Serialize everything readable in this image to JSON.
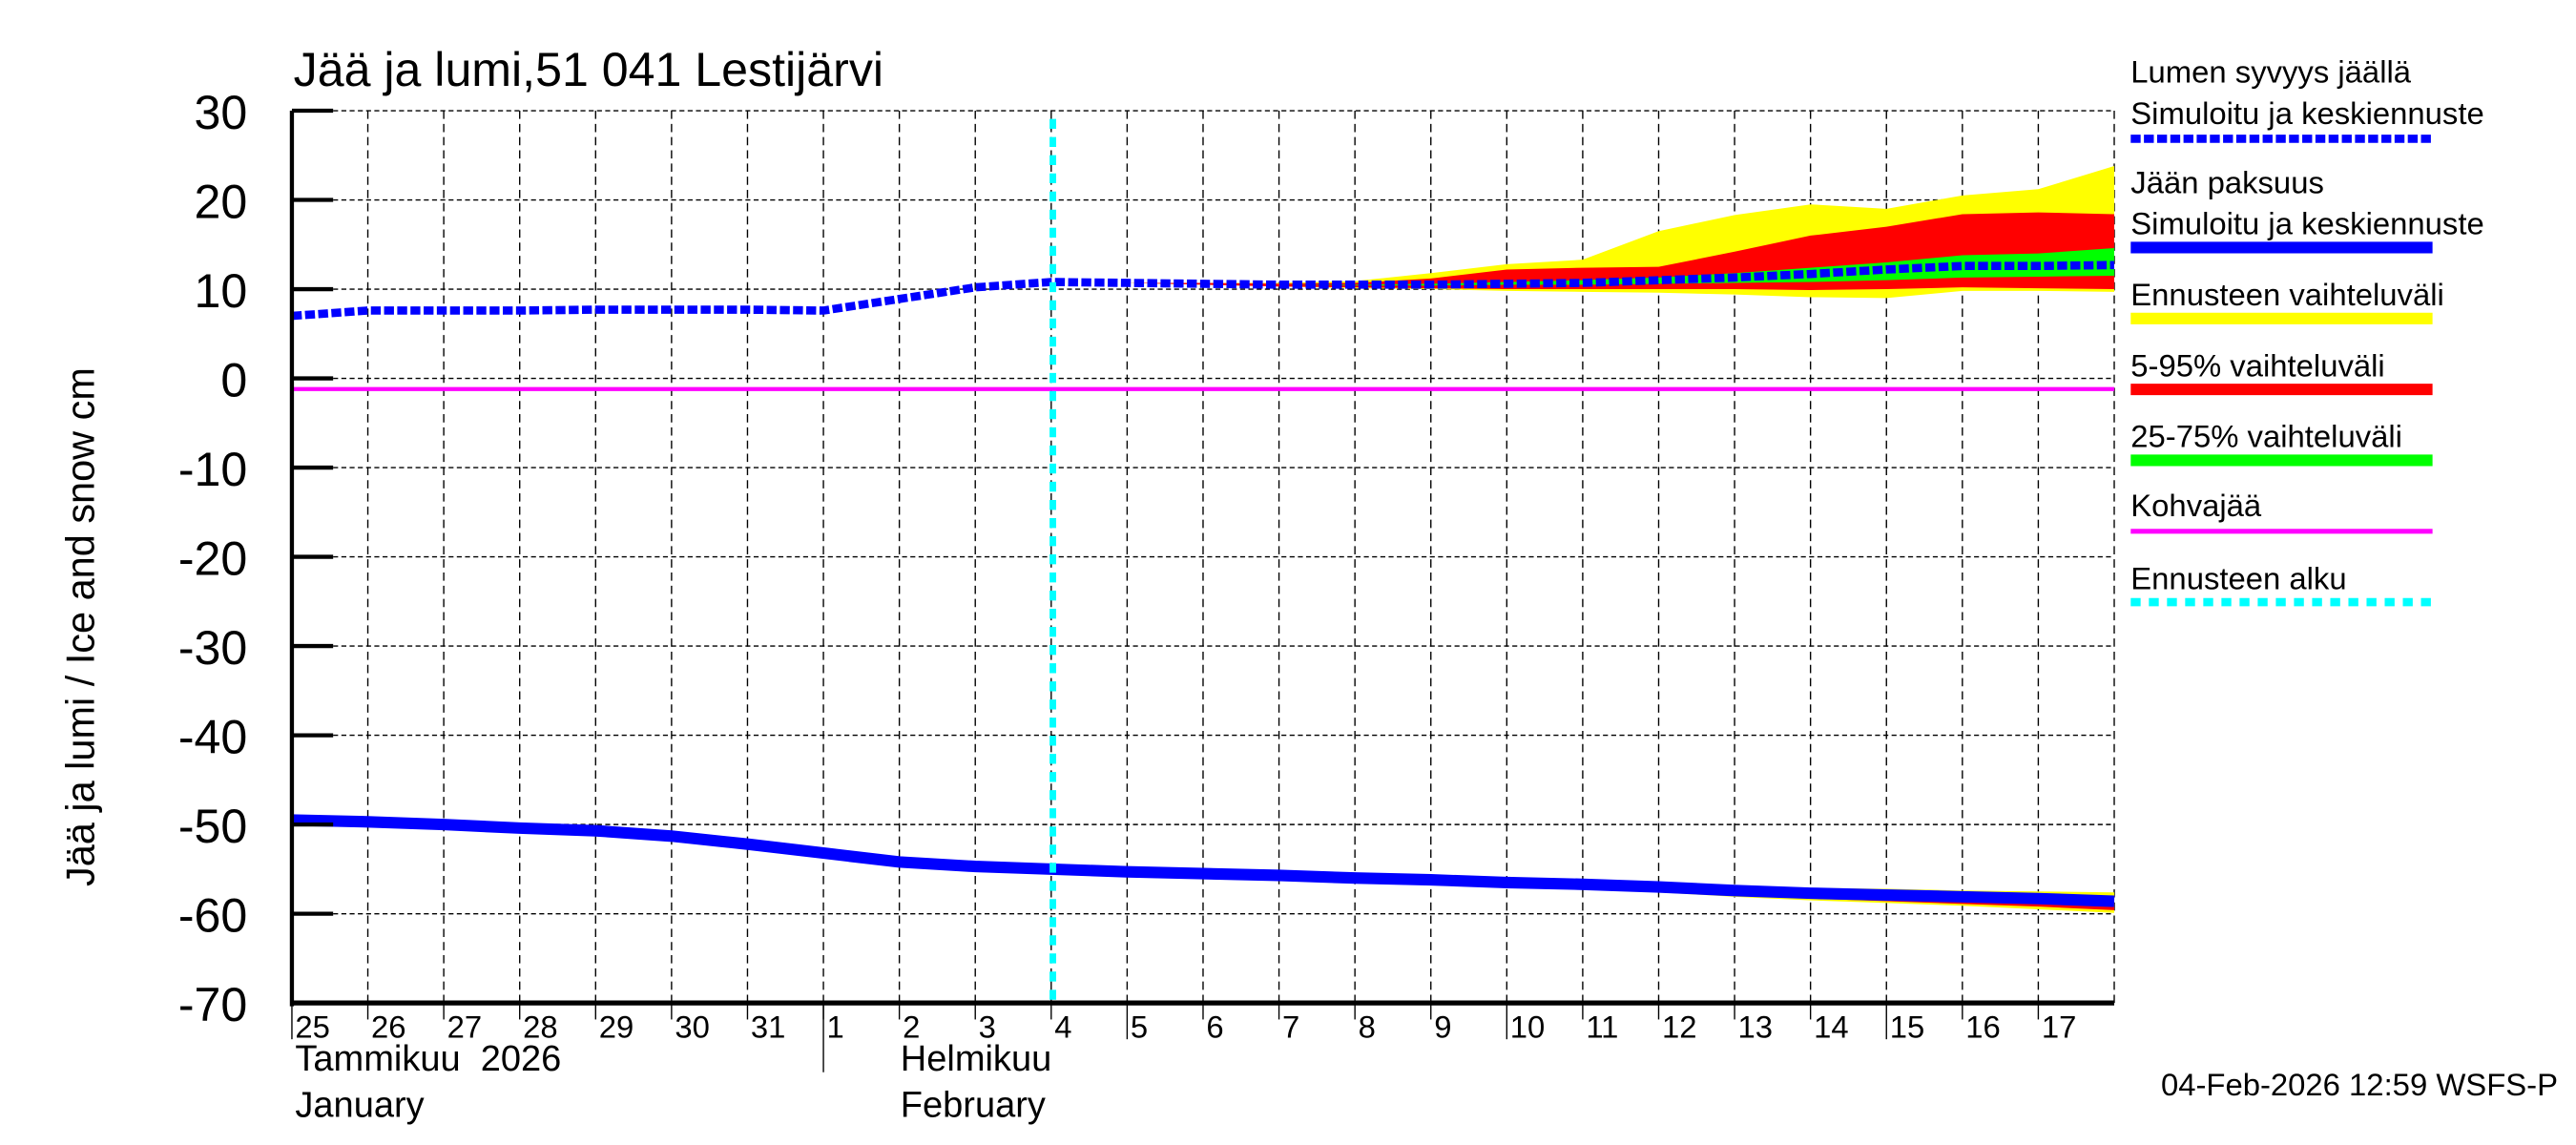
{
  "chart_data": {
    "type": "area",
    "title": "Jää ja lumi,51 041 Lestijärvi",
    "ylabel": "Jää ja lumi / Ice and snow    cm",
    "ylim": [
      -70,
      30
    ],
    "yticks": [
      "30",
      "20",
      "10",
      "0",
      "-10",
      "-20",
      "-30",
      "-40",
      "-50",
      "-60",
      "-70"
    ],
    "xlim": [
      "2026-01-25",
      "2026-02-18"
    ],
    "x_tick_labels": [
      "25",
      "26",
      "27",
      "28",
      "29",
      "30",
      "31",
      "1",
      "2",
      "3",
      "4",
      "5",
      "6",
      "7",
      "8",
      "9",
      "10",
      "11",
      "12",
      "13",
      "14",
      "15",
      "16",
      "17"
    ],
    "month_labels": [
      {
        "fi": "Tammikuu  2026",
        "en": "January"
      },
      {
        "fi": "Helmikuu",
        "en": "February"
      }
    ],
    "grid": true,
    "legend_position": "right",
    "forecast_start": "2026-02-04",
    "dates": [
      "2026-01-25",
      "2026-01-26",
      "2026-01-27",
      "2026-01-28",
      "2026-01-29",
      "2026-01-30",
      "2026-01-31",
      "2026-02-01",
      "2026-02-02",
      "2026-02-03",
      "2026-02-04",
      "2026-02-05",
      "2026-02-06",
      "2026-02-07",
      "2026-02-08",
      "2026-02-09",
      "2026-02-10",
      "2026-02-11",
      "2026-02-12",
      "2026-02-13",
      "2026-02-14",
      "2026-02-15",
      "2026-02-16",
      "2026-02-17",
      "2026-02-18"
    ],
    "band_dates": [
      "2026-02-05",
      "2026-02-06",
      "2026-02-07",
      "2026-02-08",
      "2026-02-09",
      "2026-02-10",
      "2026-02-11",
      "2026-02-12",
      "2026-02-13",
      "2026-02-14",
      "2026-02-15",
      "2026-02-16",
      "2026-02-17",
      "2026-02-18"
    ],
    "snow_depth": [
      7.0,
      7.6,
      7.6,
      7.6,
      7.7,
      7.7,
      7.7,
      7.6,
      8.9,
      10.2,
      10.8,
      10.7,
      10.6,
      10.5,
      10.5,
      10.5,
      10.6,
      10.7,
      11.0,
      11.3,
      11.7,
      12.2,
      12.6,
      12.6,
      12.7
    ],
    "snow_bands": {
      "range_hi": [
        10.7,
        10.7,
        10.7,
        10.9,
        11.8,
        12.8,
        13.3,
        16.5,
        18.3,
        19.5,
        19.0,
        20.5,
        21.2,
        23.8
      ],
      "p95": [
        10.7,
        10.7,
        10.6,
        10.7,
        11.2,
        12.2,
        12.4,
        12.5,
        14.2,
        16.0,
        17.0,
        18.4,
        18.6,
        18.4
      ],
      "p75": [
        10.7,
        10.6,
        10.5,
        10.5,
        10.6,
        10.8,
        11.0,
        11.3,
        11.8,
        12.4,
        13.0,
        13.8,
        14.0,
        14.6
      ],
      "p25": [
        10.7,
        10.6,
        10.5,
        10.4,
        10.4,
        10.5,
        10.5,
        10.6,
        10.7,
        10.8,
        11.0,
        11.3,
        11.4,
        11.5
      ],
      "p5": [
        10.7,
        10.5,
        10.3,
        10.2,
        10.1,
        10.0,
        10.0,
        10.0,
        10.0,
        9.9,
        10.0,
        10.2,
        10.1,
        10.0
      ],
      "range_lo": [
        10.7,
        10.5,
        10.3,
        10.1,
        10.0,
        9.8,
        9.7,
        9.6,
        9.4,
        9.1,
        9.0,
        9.8,
        9.8,
        9.7
      ]
    },
    "ice_thickness": [
      -49.5,
      -49.7,
      -50.0,
      -50.4,
      -50.7,
      -51.3,
      -52.2,
      -53.2,
      -54.2,
      -54.7,
      -55.0,
      -55.3,
      -55.5,
      -55.7,
      -56.0,
      -56.2,
      -56.5,
      -56.7,
      -57.0,
      -57.4,
      -57.7,
      -57.9,
      -58.1,
      -58.3,
      -58.6
    ],
    "ice_bands": {
      "range_hi": [
        -55.3,
        -55.5,
        -55.7,
        -56.0,
        -56.2,
        -56.4,
        -56.6,
        -56.8,
        -57.0,
        -57.1,
        -57.2,
        -57.4,
        -57.5,
        -57.6
      ],
      "p95": [
        -55.3,
        -55.5,
        -55.7,
        -56.0,
        -56.2,
        -56.5,
        -56.7,
        -57.0,
        -57.3,
        -57.5,
        -57.6,
        -57.8,
        -58.0,
        -58.1
      ],
      "p5": [
        -55.3,
        -55.5,
        -55.8,
        -56.1,
        -56.4,
        -56.7,
        -57.0,
        -57.4,
        -57.9,
        -58.3,
        -58.6,
        -58.9,
        -59.2,
        -59.6
      ],
      "range_lo": [
        -55.3,
        -55.6,
        -55.9,
        -56.2,
        -56.5,
        -56.9,
        -57.2,
        -57.6,
        -58.1,
        -58.5,
        -58.8,
        -59.1,
        -59.5,
        -59.9
      ]
    },
    "slush_ice": -1.2,
    "legend": [
      {
        "label": "Lumen syvyys jäällä",
        "label2": "Simuloitu ja keskiennuste",
        "color": "#0000ff",
        "style": "dashed"
      },
      {
        "label": "Jään paksuus",
        "label2": "Simuloitu ja keskiennuste",
        "color": "#0000ff",
        "style": "solid"
      },
      {
        "label": "Ennusteen vaihteluväli",
        "color": "#ffff00",
        "style": "solid"
      },
      {
        "label": "5-95% vaihteluväli",
        "color": "#ff0000",
        "style": "solid"
      },
      {
        "label": "25-75% vaihteluväli",
        "color": "#00ff00",
        "style": "solid"
      },
      {
        "label": "Kohvajää",
        "color": "#ff00ff",
        "style": "thin"
      },
      {
        "label": "Ennusteen alku",
        "color": "#00ffff",
        "style": "dotted"
      }
    ],
    "footer": "04-Feb-2026 12:59 WSFS-P"
  }
}
